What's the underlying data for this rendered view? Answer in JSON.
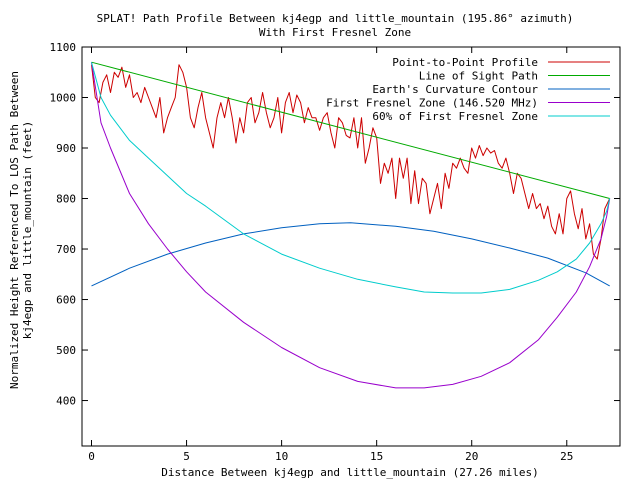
{
  "chart_data": {
    "type": "line",
    "title": "SPLAT! Path Profile Between kj4egp and little_mountain (195.86° azimuth)",
    "subtitle": "With First Fresnel Zone",
    "xlabel": "Distance Between kj4egp and little_mountain (27.26 miles)",
    "ylabel_line1": "Normalized Height Referenced To LOS Path Between",
    "ylabel_line2": "kj4egp and little_mountain (feet)",
    "xlim": [
      -0.5,
      27.8
    ],
    "ylim": [
      310,
      1100
    ],
    "xticks": [
      0,
      5,
      10,
      15,
      20,
      25
    ],
    "yticks": [
      400,
      500,
      600,
      700,
      800,
      900,
      1000,
      1100
    ],
    "grid": false,
    "legend_position": "top-right",
    "series": [
      {
        "name": "Point-to-Point Profile",
        "color": "#cc0000",
        "x": [
          0,
          0.2,
          0.4,
          0.6,
          0.8,
          1.0,
          1.2,
          1.4,
          1.6,
          1.8,
          2.0,
          2.2,
          2.4,
          2.6,
          2.8,
          3.0,
          3.2,
          3.4,
          3.6,
          3.8,
          4.0,
          4.2,
          4.4,
          4.6,
          4.8,
          5.0,
          5.2,
          5.4,
          5.6,
          5.8,
          6.0,
          6.2,
          6.4,
          6.6,
          6.8,
          7.0,
          7.2,
          7.4,
          7.6,
          7.8,
          8.0,
          8.2,
          8.4,
          8.6,
          8.8,
          9.0,
          9.2,
          9.4,
          9.6,
          9.8,
          10.0,
          10.2,
          10.4,
          10.6,
          10.8,
          11.0,
          11.2,
          11.4,
          11.6,
          11.8,
          12.0,
          12.2,
          12.4,
          12.6,
          12.8,
          13.0,
          13.2,
          13.4,
          13.6,
          13.8,
          14.0,
          14.2,
          14.4,
          14.6,
          14.8,
          15.0,
          15.2,
          15.4,
          15.6,
          15.8,
          16.0,
          16.2,
          16.4,
          16.6,
          16.8,
          17.0,
          17.2,
          17.4,
          17.6,
          17.8,
          18.0,
          18.2,
          18.4,
          18.6,
          18.8,
          19.0,
          19.2,
          19.4,
          19.6,
          19.8,
          20.0,
          20.2,
          20.4,
          20.6,
          20.8,
          21.0,
          21.2,
          21.4,
          21.6,
          21.8,
          22.0,
          22.2,
          22.4,
          22.6,
          22.8,
          23.0,
          23.2,
          23.4,
          23.6,
          23.8,
          24.0,
          24.2,
          24.4,
          24.6,
          24.8,
          25.0,
          25.2,
          25.4,
          25.6,
          25.8,
          26.0,
          26.2,
          26.4,
          26.6,
          26.8,
          27.0,
          27.26
        ],
        "y": [
          1065,
          1000,
          990,
          1030,
          1045,
          1010,
          1050,
          1040,
          1060,
          1020,
          1045,
          1000,
          1010,
          990,
          1020,
          1000,
          980,
          960,
          1000,
          930,
          960,
          980,
          1000,
          1065,
          1050,
          1020,
          960,
          940,
          980,
          1010,
          960,
          930,
          900,
          960,
          990,
          960,
          1000,
          960,
          910,
          960,
          930,
          990,
          1000,
          950,
          970,
          1010,
          970,
          940,
          960,
          1000,
          930,
          990,
          1010,
          970,
          1005,
          990,
          950,
          980,
          960,
          960,
          935,
          960,
          970,
          930,
          900,
          960,
          950,
          925,
          920,
          960,
          900,
          960,
          870,
          900,
          940,
          920,
          830,
          870,
          850,
          880,
          800,
          880,
          840,
          880,
          790,
          855,
          790,
          840,
          830,
          770,
          800,
          830,
          780,
          850,
          820,
          870,
          860,
          880,
          860,
          850,
          900,
          880,
          905,
          885,
          900,
          890,
          895,
          870,
          860,
          880,
          850,
          810,
          850,
          840,
          810,
          780,
          810,
          780,
          790,
          760,
          785,
          745,
          730,
          770,
          730,
          800,
          815,
          770,
          740,
          780,
          720,
          750,
          690,
          680,
          720,
          780,
          800
        ]
      },
      {
        "name": "Line of Sight Path",
        "color": "#00aa00",
        "x": [
          0,
          27.26
        ],
        "y": [
          1070,
          800
        ]
      },
      {
        "name": "Earth's Curvature Contour",
        "color": "#0060c0",
        "x": [
          0,
          2,
          4,
          6,
          8,
          10,
          12,
          13.63,
          16,
          18,
          20,
          22,
          24,
          26,
          27.26
        ],
        "y": [
          627,
          662,
          690,
          712,
          730,
          742,
          750,
          752,
          745,
          735,
          720,
          702,
          682,
          653,
          627
        ]
      },
      {
        "name": "First Fresnel Zone (146.520 MHz)",
        "color": "#9900cc",
        "x": [
          0,
          0.5,
          1,
          2,
          3,
          4,
          5,
          6,
          8,
          10,
          12,
          14,
          16,
          17.5,
          19,
          20.5,
          22,
          23.5,
          24.5,
          25.5,
          26.2,
          26.8,
          27.1,
          27.26
        ],
        "y": [
          1070,
          950,
          900,
          810,
          750,
          700,
          655,
          615,
          555,
          505,
          465,
          438,
          425,
          425,
          432,
          448,
          475,
          520,
          565,
          615,
          665,
          720,
          765,
          800
        ]
      },
      {
        "name": "60% of First Fresnel Zone",
        "color": "#00cccc",
        "x": [
          0,
          0.5,
          1,
          2,
          3,
          4,
          5,
          6,
          8,
          10,
          12,
          14,
          16,
          17.5,
          19,
          20.5,
          22,
          23.5,
          24.5,
          25.5,
          26.2,
          26.8,
          27.1,
          27.26
        ],
        "y": [
          1070,
          1000,
          965,
          915,
          880,
          845,
          810,
          785,
          730,
          690,
          662,
          640,
          625,
          615,
          613,
          613,
          620,
          638,
          655,
          680,
          712,
          750,
          775,
          800
        ]
      }
    ]
  }
}
